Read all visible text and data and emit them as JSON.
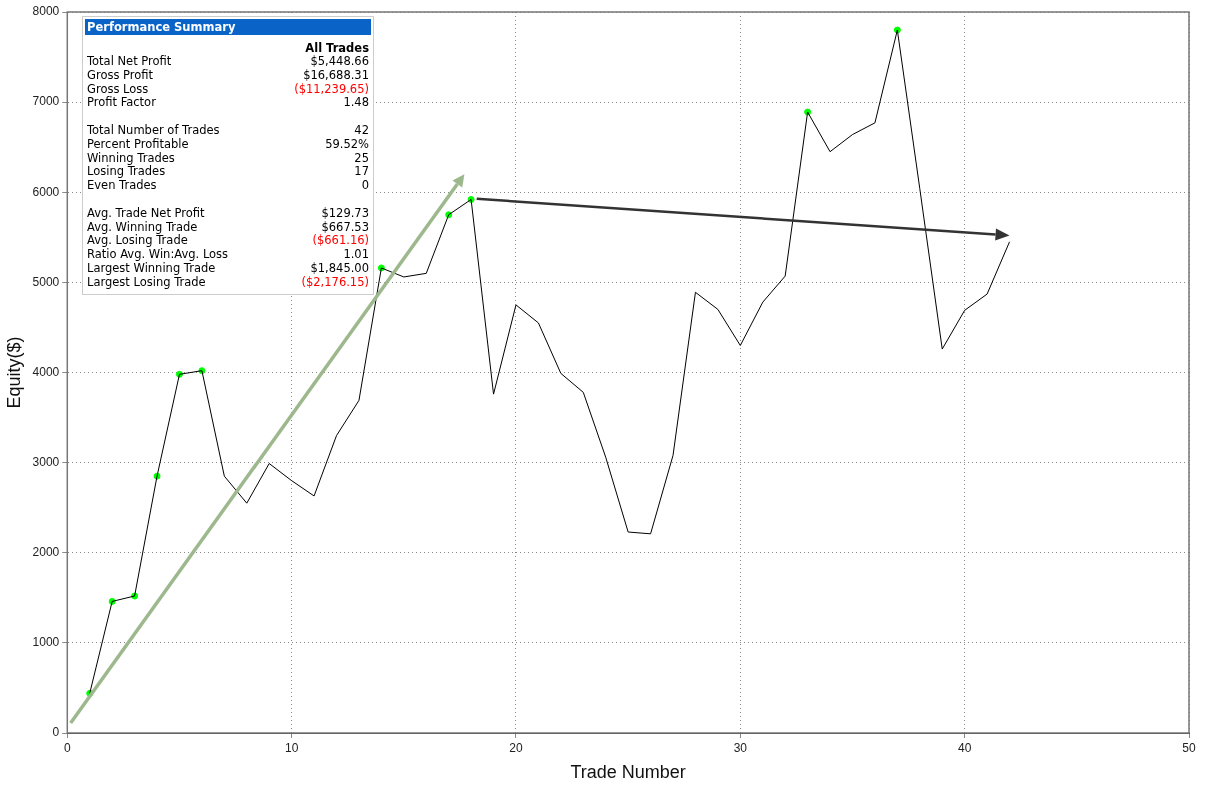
{
  "chart_data": [
    {
      "type": "line",
      "xlabel": "Trade Number",
      "ylabel": "Equity($)",
      "xlim": [
        0,
        50
      ],
      "xticks": [
        0,
        10,
        20,
        30,
        40,
        50
      ],
      "ylim": [
        0,
        8000
      ],
      "yticks": [
        0,
        1000,
        2000,
        3000,
        4000,
        5000,
        6000,
        7000,
        8000
      ],
      "grid": true,
      "marker": "none",
      "line_style": "solid",
      "series": [
        {
          "color": "#000000",
          "x": [
            1,
            2,
            3,
            4,
            5,
            6,
            7,
            8,
            9,
            10,
            11,
            12,
            13,
            14,
            15,
            16,
            17,
            18,
            19,
            20,
            21,
            22,
            23,
            24,
            25,
            26,
            27,
            28,
            29,
            30,
            31,
            32,
            33,
            34,
            35,
            36,
            37,
            38,
            39,
            40,
            41,
            42
          ],
          "values": [
            440,
            1460,
            1520,
            2850,
            3980,
            4020,
            2850,
            2550,
            2990,
            2800,
            2630,
            3300,
            3690,
            5160,
            5060,
            5100,
            5750,
            5920,
            3760,
            4750,
            4550,
            3990,
            3780,
            3060,
            2230,
            2210,
            3080,
            4890,
            4700,
            4300,
            4780,
            5070,
            6890,
            6450,
            6640,
            6770,
            7800,
            6040,
            4260,
            4690,
            4870,
            5450
          ]
        },
        {
          "type": "scatter",
          "color": "#00ff00",
          "marker": "circle",
          "x": [
            1,
            2,
            3,
            4,
            5,
            6,
            14,
            17,
            18,
            33,
            37
          ],
          "values": [
            440,
            1460,
            1520,
            2850,
            3980,
            4020,
            5160,
            5750,
            5920,
            6890,
            7800
          ]
        }
      ]
    },
    {
      "type": "other",
      "title": "Performance Summary",
      "subtitle": "All Trades",
      "categories": [
        "Total Net Profit",
        "Gross Profit",
        "Gross Loss",
        "Profit Factor",
        null,
        "Total Number of Trades",
        "Percent Profitable",
        "Winning Trades",
        "Losing Trades",
        "Even Trades",
        null,
        "Avg. Trade Net Profit",
        "Avg. Winning Trade",
        "Avg. Losing Trade",
        "Ratio Avg. Win:Avg. Loss",
        "Largest Winning Trade",
        "Largest Losing Trade"
      ],
      "value_labels": [
        "$5,448.66",
        "$16,688.31",
        "($11,239.65)",
        "1.48",
        null,
        "42",
        "59.52%",
        "25",
        "17",
        "0",
        null,
        "$129.73",
        "$667.53",
        "($661.16)",
        "1.01",
        "$1,845.00",
        "($2,176.15)"
      ],
      "colors": [
        "#000000",
        "#000000",
        "#ff0000",
        "#000000",
        null,
        "#000000",
        "#000000",
        "#000000",
        "#000000",
        "#000000",
        null,
        "#000000",
        "#000000",
        "#ff0000",
        "#000000",
        "#000000",
        "#ff0000"
      ]
    }
  ]
}
